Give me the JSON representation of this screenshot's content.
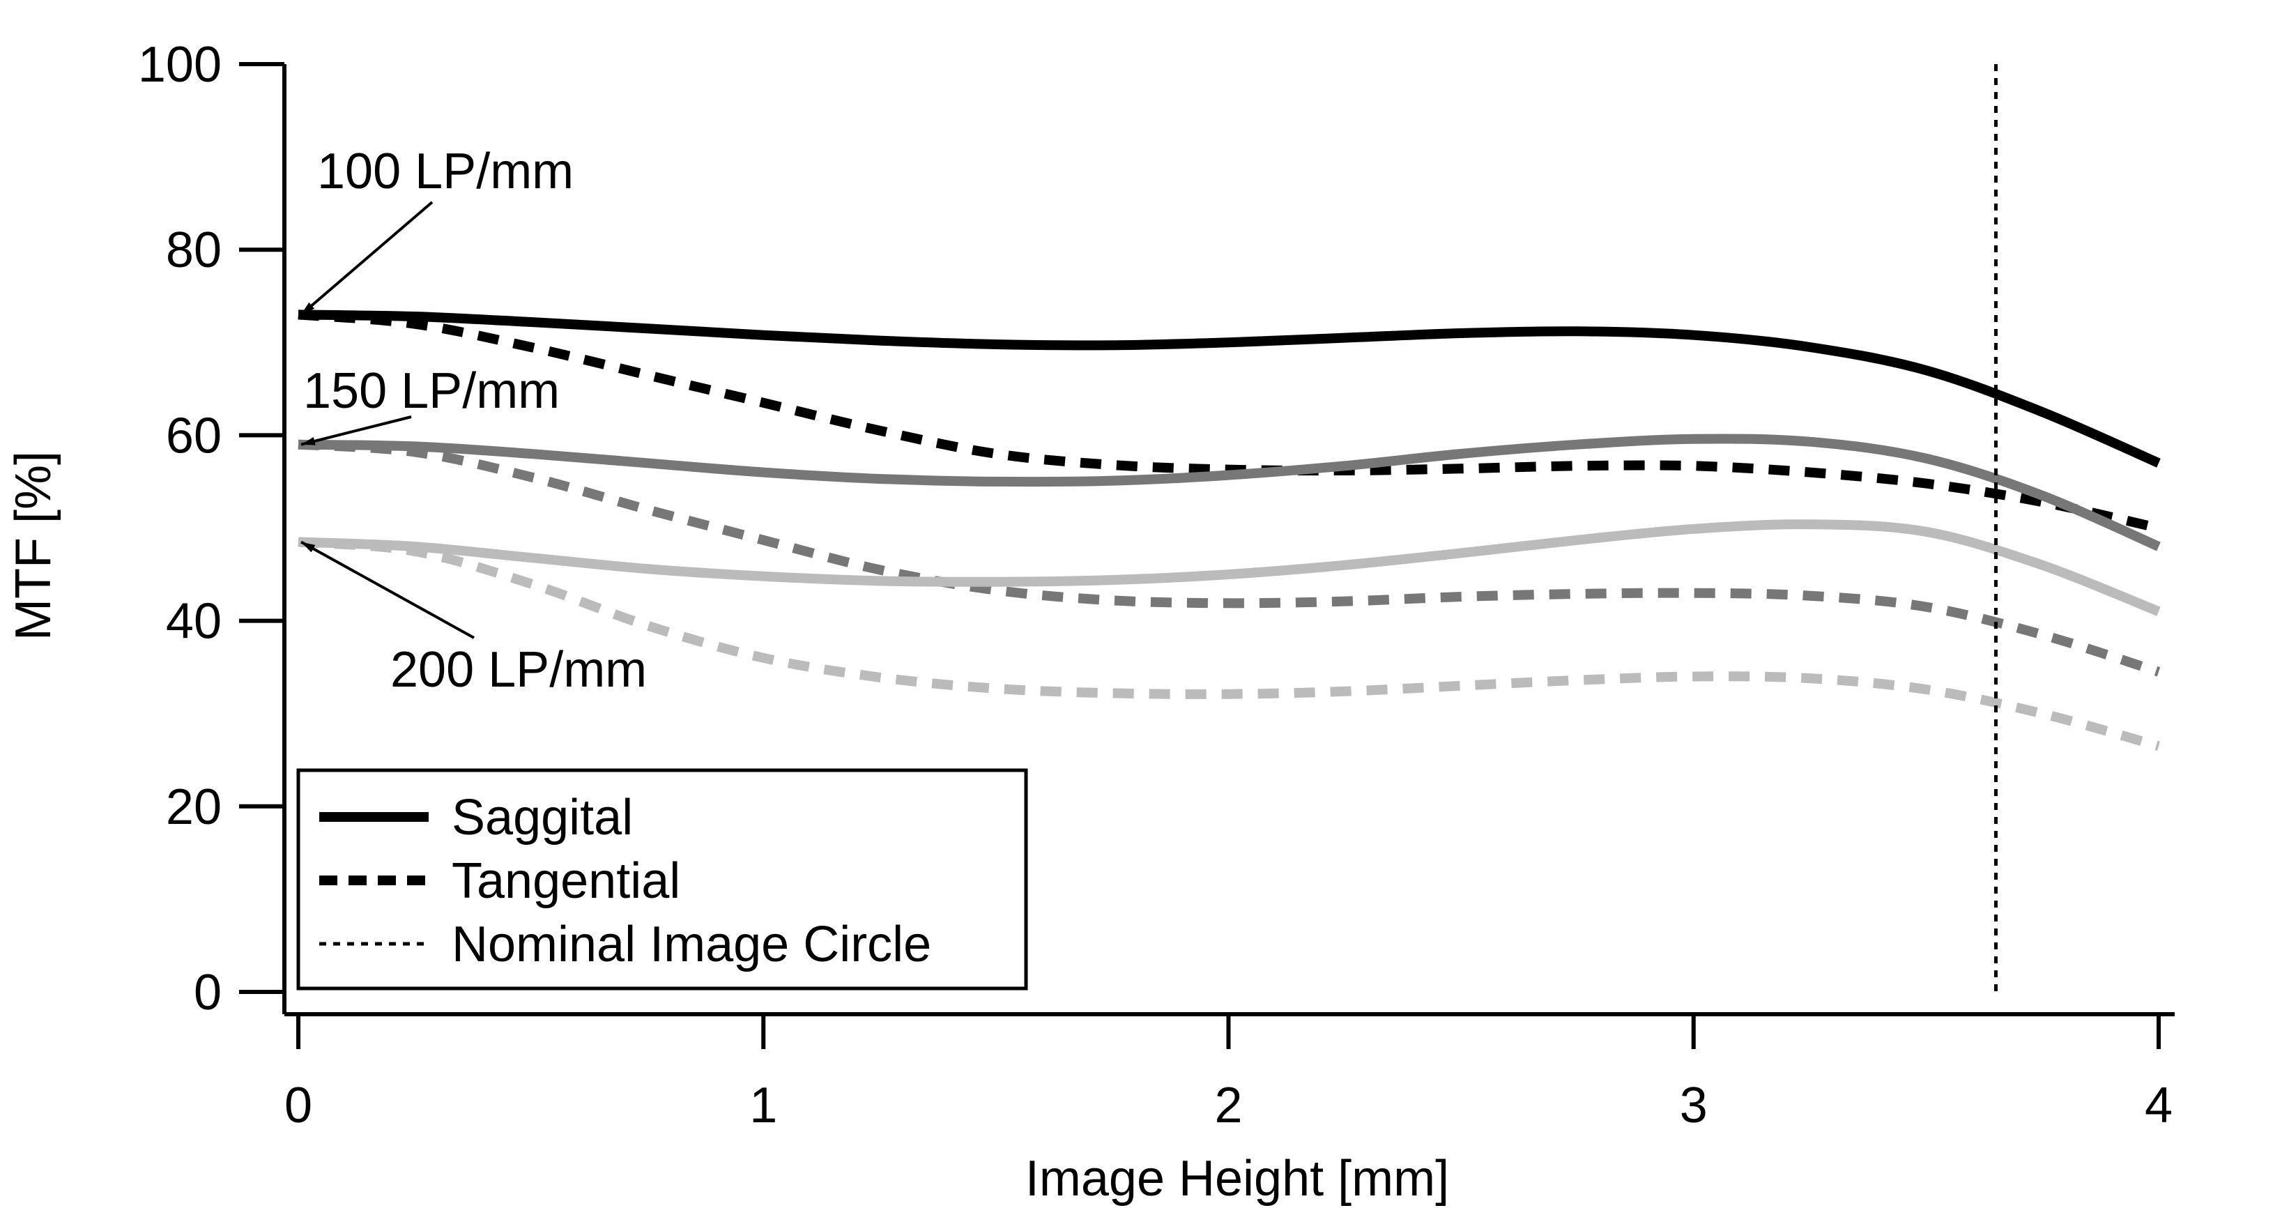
{
  "chart_data": {
    "type": "line",
    "title": "",
    "xlabel": "Image Height [mm]",
    "ylabel": "MTF [%]",
    "xlim": [
      0,
      4
    ],
    "ylim": [
      0,
      100
    ],
    "xticks": [
      "0",
      "1",
      "2",
      "3",
      "4"
    ],
    "yticks": [
      "0",
      "20",
      "40",
      "60",
      "80",
      "100"
    ],
    "grid": false,
    "legend": {
      "placement": "bottom-left",
      "entries": [
        {
          "label": "Saggital",
          "style": "solid"
        },
        {
          "label": "Tangential",
          "style": "dashed"
        },
        {
          "label": "Nominal Image Circle",
          "style": "dotted"
        }
      ]
    },
    "nominal_image_circle_x": 3.65,
    "annotations": [
      {
        "text": "100 LP/mm",
        "points_to": [
          0,
          73
        ]
      },
      {
        "text": "150 LP/mm",
        "points_to": [
          0,
          59
        ]
      },
      {
        "text": "200 LP/mm",
        "points_to": [
          0,
          48.5
        ]
      }
    ],
    "x": [
      0,
      0.25,
      0.5,
      0.75,
      1,
      1.25,
      1.5,
      1.75,
      2,
      2.25,
      2.5,
      2.75,
      3,
      3.25,
      3.5,
      3.75,
      4
    ],
    "series": [
      {
        "frequency": "100 LP/mm",
        "type": "Saggital",
        "color": "#000000",
        "values": [
          73,
          72.8,
          72.2,
          71.5,
          70.8,
          70.2,
          69.8,
          69.7,
          70.0,
          70.5,
          71.0,
          71.2,
          70.8,
          69.5,
          67.0,
          62.5,
          57.0
        ]
      },
      {
        "frequency": "100 LP/mm",
        "type": "Tangential",
        "color": "#000000",
        "values": [
          73,
          72.0,
          69.5,
          66.5,
          63.5,
          60.5,
          58.0,
          56.8,
          56.3,
          56.2,
          56.4,
          56.7,
          56.7,
          56.0,
          54.8,
          52.8,
          50.0
        ]
      },
      {
        "frequency": "150 LP/mm",
        "type": "Saggital",
        "color": "#777777",
        "values": [
          59,
          58.8,
          58.0,
          57.0,
          56.0,
          55.3,
          55.0,
          55.1,
          55.7,
          56.7,
          58.0,
          59.0,
          59.6,
          59.3,
          57.5,
          53.5,
          48.0
        ]
      },
      {
        "frequency": "150 LP/mm",
        "type": "Tangential",
        "color": "#777777",
        "values": [
          59,
          58.2,
          55.5,
          52.0,
          48.7,
          45.5,
          43.3,
          42.2,
          41.9,
          42.1,
          42.6,
          42.9,
          43.0,
          42.7,
          41.5,
          38.5,
          34.5
        ]
      },
      {
        "frequency": "200 LP/mm",
        "type": "Saggital",
        "color": "#bbbbbb",
        "values": [
          48.5,
          48.0,
          46.8,
          45.6,
          44.8,
          44.3,
          44.2,
          44.4,
          45.0,
          46.0,
          47.3,
          48.7,
          49.9,
          50.4,
          49.6,
          46.0,
          41.0
        ]
      },
      {
        "frequency": "200 LP/mm",
        "type": "Tangential",
        "color": "#bbbbbb",
        "values": [
          48.5,
          47.5,
          44.0,
          39.5,
          36.0,
          33.9,
          32.7,
          32.2,
          32.1,
          32.4,
          33.0,
          33.6,
          34.0,
          33.8,
          32.6,
          30.0,
          26.5
        ]
      }
    ]
  }
}
